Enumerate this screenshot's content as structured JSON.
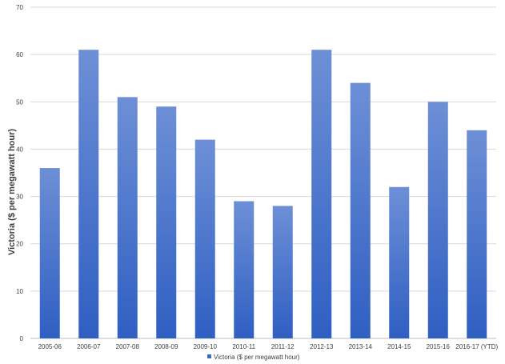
{
  "chart_data": {
    "type": "bar",
    "title": "",
    "xlabel": "",
    "ylabel": "Victoria ($ per megawatt hour)",
    "categories": [
      "2005-06",
      "2006-07",
      "2007-08",
      "2008-09",
      "2009-10",
      "2010-11",
      "2011-12",
      "2012-13",
      "2013-14",
      "2014-15",
      "2015-16",
      "2016-17 (YTD)"
    ],
    "series": [
      {
        "name": "Victoria ($ per megawatt hour)",
        "values": [
          36,
          61,
          51,
          49,
          42,
          29,
          28,
          61,
          54,
          32,
          50,
          44
        ]
      }
    ],
    "ylim": [
      0,
      70
    ],
    "yticks": [
      "0",
      "10",
      "20",
      "30",
      "40",
      "50",
      "60",
      "70"
    ],
    "grid": true,
    "legend": "bottom",
    "colors": {
      "bar_top": "#6d8fd6",
      "bar_bottom": "#2f5fc2",
      "grid": "#d9d9d9",
      "text": "#404040"
    }
  }
}
